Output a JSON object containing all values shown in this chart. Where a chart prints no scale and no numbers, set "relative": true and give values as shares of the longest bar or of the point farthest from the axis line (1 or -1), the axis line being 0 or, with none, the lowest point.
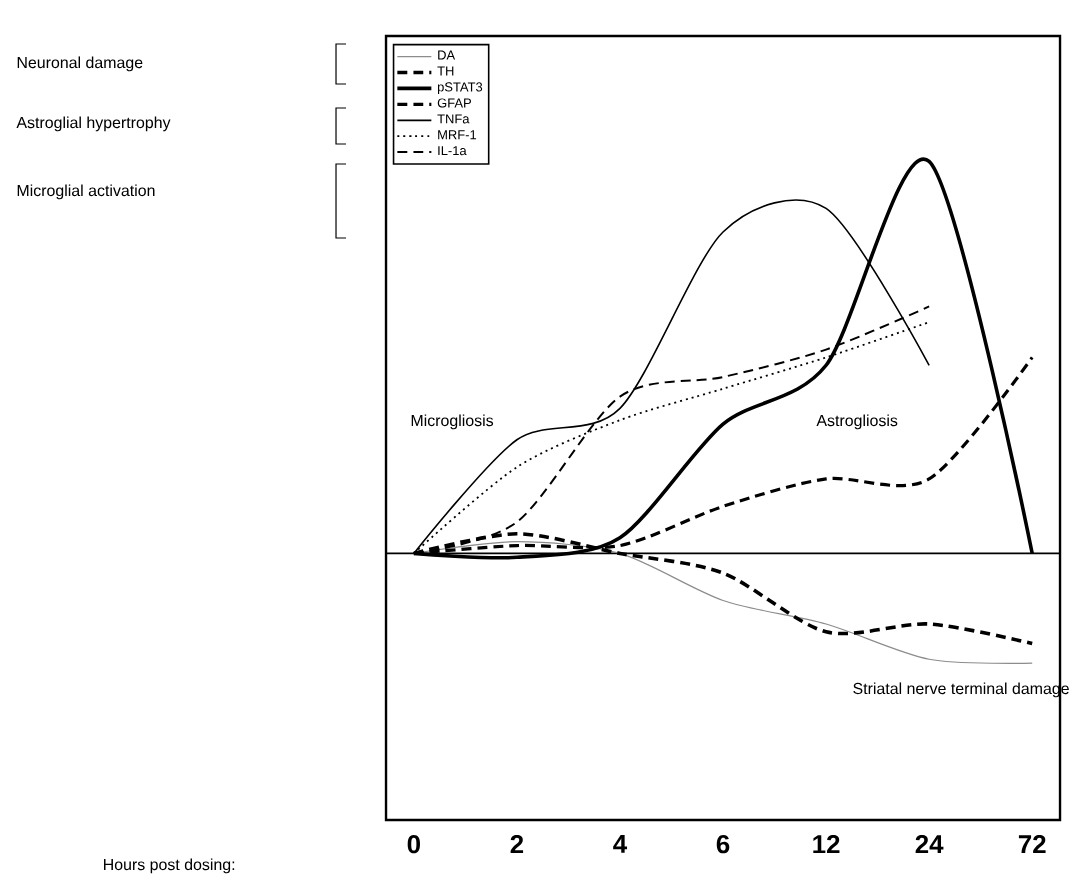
{
  "chart_data": {
    "type": "line",
    "relative": true,
    "categories": [
      "0",
      "2",
      "4",
      "6",
      "12",
      "24",
      "72"
    ],
    "series": [
      {
        "name": "DA",
        "color": "#8c8c8c",
        "line_style": "solid",
        "values": [
          0,
          0.03,
          0,
          -0.12,
          -0.18,
          -0.27,
          -0.28
        ]
      },
      {
        "name": "TH",
        "color": "#000000",
        "line_style": "dashed",
        "values": [
          0,
          0.05,
          0,
          -0.05,
          -0.2,
          -0.18,
          -0.23
        ]
      },
      {
        "name": "pSTAT3",
        "color": "#000000",
        "line_style": "solid",
        "values": [
          0,
          -0.01,
          0.04,
          0.33,
          0.48,
          1,
          0
        ]
      },
      {
        "name": "GFAP",
        "color": "#000000",
        "line_style": "dashed",
        "values": [
          0,
          0.02,
          0.02,
          0.12,
          0.19,
          0.19,
          0.5
        ]
      },
      {
        "name": "TNFa",
        "color": "#000000",
        "line_style": "solid",
        "values": [
          0,
          0.29,
          0.37,
          0.82,
          0.88,
          0.48,
          null
        ]
      },
      {
        "name": "MRF-1",
        "color": "#000000",
        "line_style": "dotted",
        "values": [
          0,
          0.22,
          0.34,
          0.42,
          0.5,
          0.59,
          null
        ]
      },
      {
        "name": "IL-1a",
        "color": "#000000",
        "line_style": "dashed",
        "values": [
          0,
          0.08,
          0.4,
          0.45,
          0.52,
          0.63,
          null
        ]
      }
    ],
    "legend": "top left",
    "annotations": [
      "Neuronal damage",
      "Astroglial hypertrophy",
      "Microglial activation",
      "Microgliosis",
      "Astrogliosis",
      "Striatal nerve terminal damage",
      "Hours post dosing:"
    ]
  }
}
